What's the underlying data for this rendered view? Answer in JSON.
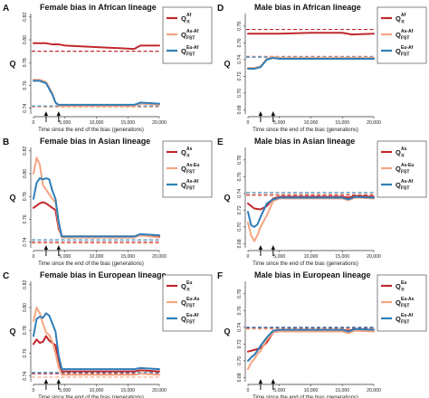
{
  "colors": {
    "red": "#c0282d",
    "orange": "#f4a582",
    "blue": "#2f7eb8",
    "axis": "#333333",
    "arrow": "#111111"
  },
  "chart_data": [
    {
      "id": "A",
      "panel_label": "A",
      "type": "line",
      "title": "Female bias in African lineage",
      "xlabel": "Time since the end of the bias (generations)",
      "ylabel": "Q",
      "xlim": [
        0,
        20000
      ],
      "xticks": [
        0,
        5000,
        10000,
        15000,
        20000
      ],
      "xtick_labels": [
        "0",
        "5,000",
        "10,000",
        "15,000",
        "20,000"
      ],
      "ylim": [
        0.735,
        0.823
      ],
      "yticks": [
        0.74,
        0.76,
        0.78,
        0.8,
        0.82
      ],
      "ytick_labels": [
        "0.74",
        "0.76",
        "0.78",
        "0.80",
        "0.82"
      ],
      "arrows_x": [
        2000,
        4000
      ],
      "series": [
        {
          "name_main": "Q",
          "name_sup": "Af",
          "name_sub": "π",
          "color": "red",
          "x": [
            0,
            1000,
            2000,
            3000,
            4000,
            5000,
            16000,
            17000,
            20000
          ],
          "y": [
            0.797,
            0.797,
            0.797,
            0.796,
            0.796,
            0.795,
            0.792,
            0.795,
            0.795
          ],
          "expected": 0.79
        },
        {
          "name_main": "Q",
          "name_sup": "As-Af",
          "name_sub": "FST",
          "color": "orange",
          "x": [
            0,
            1000,
            2000,
            3000,
            3500,
            4000,
            16000,
            17000,
            20000
          ],
          "y": [
            0.765,
            0.765,
            0.763,
            0.753,
            0.745,
            0.742,
            0.742,
            0.744,
            0.743
          ],
          "expected": 0.741
        },
        {
          "name_main": "Q",
          "name_sup": "Eu-Af",
          "name_sub": "FST",
          "color": "blue",
          "x": [
            0,
            1000,
            2000,
            3000,
            3500,
            4000,
            16000,
            17000,
            20000
          ],
          "y": [
            0.764,
            0.764,
            0.762,
            0.752,
            0.745,
            0.743,
            0.743,
            0.745,
            0.744
          ],
          "expected": 0.742
        }
      ]
    },
    {
      "id": "D",
      "panel_label": "D",
      "type": "line",
      "title": "Male bias in African lineage",
      "xlabel": "Time since the end of the bias (generations)",
      "ylabel": "Q",
      "xlim": [
        0,
        20000
      ],
      "xticks": [
        0,
        5000,
        10000,
        15000,
        20000
      ],
      "xtick_labels": [
        "0",
        "5,000",
        "10,000",
        "15,000",
        "20,000"
      ],
      "ylim": [
        0.675,
        0.795
      ],
      "yticks": [
        0.68,
        0.7,
        0.72,
        0.74,
        0.76,
        0.78
      ],
      "ytick_labels": [
        "0.68",
        "0.70",
        "0.72",
        "0.74",
        "0.76",
        "0.78"
      ],
      "arrows_x": [
        2000,
        4000
      ],
      "series": [
        {
          "name_main": "Q",
          "name_sup": "Af",
          "name_sub": "π",
          "color": "red",
          "x": [
            0,
            5000,
            10000,
            15000,
            16500,
            20000
          ],
          "y": [
            0.771,
            0.771,
            0.772,
            0.772,
            0.77,
            0.771
          ],
          "expected": 0.776
        },
        {
          "name_main": "Q",
          "name_sup": "As-Af",
          "name_sub": "FST",
          "color": "orange",
          "x": [
            0,
            1000,
            2000,
            3000,
            4000,
            5000,
            20000
          ],
          "y": [
            0.73,
            0.73,
            0.732,
            0.741,
            0.743,
            0.742,
            0.742
          ],
          "expected": 0.744
        },
        {
          "name_main": "Q",
          "name_sup": "Eu-Af",
          "name_sub": "FST",
          "color": "blue",
          "x": [
            0,
            1000,
            2000,
            3000,
            4000,
            5000,
            20000
          ],
          "y": [
            0.729,
            0.729,
            0.731,
            0.74,
            0.742,
            0.741,
            0.741
          ],
          "expected": 0.743
        }
      ]
    },
    {
      "id": "B",
      "panel_label": "B",
      "type": "line",
      "title": "Female bias in Asian lineage",
      "xlabel": "Time since the end of the bias (generations)",
      "ylabel": "Q",
      "xlim": [
        0,
        20000
      ],
      "xticks": [
        0,
        5000,
        10000,
        15000,
        20000
      ],
      "xtick_labels": [
        "0",
        "5,000",
        "10,000",
        "15,000",
        "20,000"
      ],
      "ylim": [
        0.735,
        0.823
      ],
      "yticks": [
        0.74,
        0.76,
        0.78,
        0.8,
        0.82
      ],
      "ytick_labels": [
        "0.74",
        "0.76",
        "0.78",
        "0.80",
        "0.82"
      ],
      "arrows_x": [
        2000,
        4000
      ],
      "series": [
        {
          "name_main": "Q",
          "name_sup": "As",
          "name_sub": "π",
          "color": "red",
          "x": [
            0,
            1000,
            1500,
            2000,
            3000,
            3500,
            4000,
            4500,
            16000,
            17000,
            20000
          ],
          "y": [
            0.77,
            0.774,
            0.775,
            0.774,
            0.77,
            0.768,
            0.752,
            0.745,
            0.745,
            0.746,
            0.745
          ],
          "expected": 0.74
        },
        {
          "name_main": "Q",
          "name_sup": "As-Eu",
          "name_sub": "FST",
          "color": "orange",
          "x": [
            0,
            500,
            1000,
            1500,
            2000,
            3000,
            3500,
            4000,
            4500,
            16000,
            17000,
            20000
          ],
          "y": [
            0.8,
            0.814,
            0.808,
            0.79,
            0.786,
            0.778,
            0.775,
            0.755,
            0.744,
            0.744,
            0.746,
            0.744
          ],
          "expected": 0.739
        },
        {
          "name_main": "Q",
          "name_sup": "As-Af",
          "name_sub": "FST",
          "color": "blue",
          "x": [
            0,
            500,
            1000,
            1500,
            2000,
            2500,
            3000,
            3500,
            4000,
            4500,
            16000,
            17000,
            20000
          ],
          "y": [
            0.778,
            0.792,
            0.796,
            0.795,
            0.796,
            0.795,
            0.785,
            0.778,
            0.758,
            0.745,
            0.745,
            0.747,
            0.746
          ],
          "expected": 0.742
        }
      ]
    },
    {
      "id": "E",
      "panel_label": "E",
      "type": "line",
      "title": "Male bias in Asian lineage",
      "xlabel": "Time since the end of the bias (generations)",
      "ylabel": "Q",
      "xlim": [
        0,
        20000
      ],
      "xticks": [
        0,
        5000,
        10000,
        15000,
        20000
      ],
      "xtick_labels": [
        "0",
        "5,000",
        "10,000",
        "15,000",
        "20,000"
      ],
      "ylim": [
        0.675,
        0.795
      ],
      "yticks": [
        0.68,
        0.7,
        0.72,
        0.74,
        0.76,
        0.78
      ],
      "ytick_labels": [
        "0.68",
        "0.70",
        "0.72",
        "0.74",
        "0.76",
        "0.78"
      ],
      "arrows_x": [
        2000,
        4000
      ],
      "series": [
        {
          "name_main": "Q",
          "name_sup": "As",
          "name_sub": "π",
          "color": "red",
          "x": [
            0,
            1000,
            2000,
            3000,
            4000,
            5000,
            15000,
            16000,
            17000,
            20000
          ],
          "y": [
            0.728,
            0.722,
            0.721,
            0.725,
            0.734,
            0.736,
            0.736,
            0.735,
            0.737,
            0.736
          ],
          "expected": 0.738
        },
        {
          "name_main": "Q",
          "name_sup": "As-Eu",
          "name_sub": "FST",
          "color": "orange",
          "x": [
            0,
            500,
            1000,
            1500,
            2000,
            3000,
            4000,
            5000,
            15000,
            16000,
            17000,
            20000
          ],
          "y": [
            0.705,
            0.69,
            0.683,
            0.69,
            0.7,
            0.714,
            0.731,
            0.734,
            0.734,
            0.732,
            0.735,
            0.734
          ],
          "expected": 0.739
        },
        {
          "name_main": "Q",
          "name_sup": "As-Af",
          "name_sub": "FST",
          "color": "blue",
          "x": [
            0,
            500,
            1000,
            1500,
            2000,
            3000,
            4000,
            5000,
            15000,
            16000,
            17000,
            20000
          ],
          "y": [
            0.718,
            0.702,
            0.7,
            0.703,
            0.712,
            0.728,
            0.733,
            0.735,
            0.735,
            0.733,
            0.736,
            0.735
          ],
          "expected": 0.741
        }
      ]
    },
    {
      "id": "C",
      "panel_label": "C",
      "type": "line",
      "title": "Female bias in European lineage",
      "xlabel": "Time since the end of the bias (generations)",
      "ylabel": "Q",
      "xlim": [
        0,
        20000
      ],
      "xticks": [
        0,
        5000,
        10000,
        15000,
        20000
      ],
      "xtick_labels": [
        "0",
        "5,000",
        "10,000",
        "15,000",
        "20,000"
      ],
      "ylim": [
        0.735,
        0.823
      ],
      "yticks": [
        0.74,
        0.76,
        0.78,
        0.8,
        0.82
      ],
      "ytick_labels": [
        "0.74",
        "0.76",
        "0.78",
        "0.80",
        "0.82"
      ],
      "arrows_x": [
        2000,
        4000
      ],
      "series": [
        {
          "name_main": "Q",
          "name_sup": "Eu",
          "name_sub": "π",
          "color": "red",
          "x": [
            0,
            500,
            1000,
            1500,
            2000,
            2500,
            3000,
            3500,
            4000,
            4500,
            16000,
            17000,
            20000
          ],
          "y": [
            0.768,
            0.772,
            0.769,
            0.77,
            0.775,
            0.771,
            0.769,
            0.767,
            0.752,
            0.744,
            0.744,
            0.745,
            0.744
          ],
          "expected": 0.742
        },
        {
          "name_main": "Q",
          "name_sup": "Eu-As",
          "name_sub": "FST",
          "color": "orange",
          "x": [
            0,
            500,
            1000,
            1500,
            2000,
            2500,
            3000,
            3500,
            4000,
            4500,
            16000,
            17000,
            20000
          ],
          "y": [
            0.788,
            0.8,
            0.795,
            0.786,
            0.778,
            0.776,
            0.77,
            0.76,
            0.748,
            0.741,
            0.741,
            0.742,
            0.741
          ],
          "expected": 0.739
        },
        {
          "name_main": "Q",
          "name_sup": "Eu-Af",
          "name_sub": "FST",
          "color": "blue",
          "x": [
            0,
            500,
            1000,
            1500,
            2000,
            2500,
            3000,
            3500,
            4000,
            4500,
            16000,
            17000,
            20000
          ],
          "y": [
            0.775,
            0.79,
            0.792,
            0.791,
            0.795,
            0.793,
            0.786,
            0.779,
            0.758,
            0.746,
            0.746,
            0.747,
            0.746
          ],
          "expected": 0.743
        }
      ]
    },
    {
      "id": "F",
      "panel_label": "F",
      "type": "line",
      "title": "Male bias in European lineage",
      "xlabel": "Time since the end of the bias (generations)",
      "ylabel": "Q",
      "xlim": [
        0,
        20000
      ],
      "xticks": [
        0,
        5000,
        10000,
        15000,
        20000
      ],
      "xtick_labels": [
        "0",
        "5,000",
        "10,000",
        "15,000",
        "20,000"
      ],
      "ylim": [
        0.675,
        0.795
      ],
      "yticks": [
        0.68,
        0.7,
        0.72,
        0.74,
        0.76,
        0.78
      ],
      "ytick_labels": [
        "0.68",
        "0.70",
        "0.72",
        "0.74",
        "0.76",
        "0.78"
      ],
      "arrows_x": [
        2000,
        4000
      ],
      "series": [
        {
          "name_main": "Q",
          "name_sup": "Eu",
          "name_sub": "π",
          "color": "red",
          "x": [
            0,
            1000,
            2000,
            3000,
            4000,
            5000,
            15000,
            16000,
            17000,
            20000
          ],
          "y": [
            0.711,
            0.713,
            0.715,
            0.722,
            0.734,
            0.737,
            0.737,
            0.736,
            0.738,
            0.737
          ],
          "expected": 0.739
        },
        {
          "name_main": "Q",
          "name_sup": "Eu-As",
          "name_sub": "FST",
          "color": "orange",
          "x": [
            0,
            500,
            1000,
            1500,
            2000,
            3000,
            4000,
            5000,
            15000,
            16000,
            17000,
            20000
          ],
          "y": [
            0.69,
            0.698,
            0.702,
            0.708,
            0.712,
            0.725,
            0.734,
            0.735,
            0.735,
            0.733,
            0.736,
            0.735
          ],
          "expected": 0.738
        },
        {
          "name_main": "Q",
          "name_sup": "Eu-Af",
          "name_sub": "FST",
          "color": "blue",
          "x": [
            0,
            500,
            1000,
            1500,
            2000,
            3000,
            4000,
            5000,
            15000,
            16000,
            17000,
            20000
          ],
          "y": [
            0.7,
            0.704,
            0.707,
            0.712,
            0.718,
            0.728,
            0.736,
            0.737,
            0.737,
            0.735,
            0.738,
            0.737
          ],
          "expected": 0.74
        }
      ]
    }
  ]
}
